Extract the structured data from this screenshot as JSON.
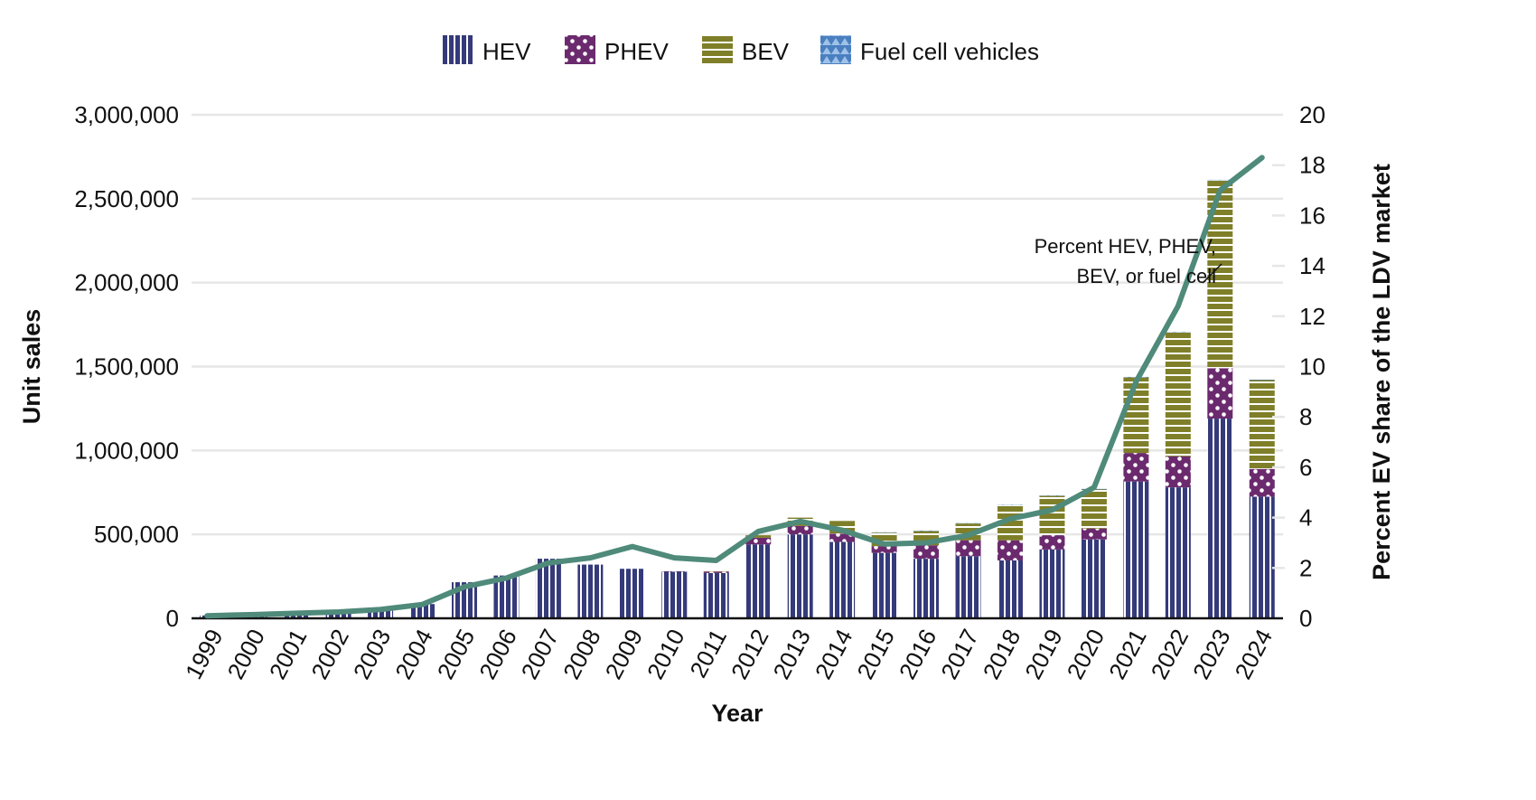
{
  "chart_data": {
    "type": "bar",
    "subtype": "stacked-bar-with-line",
    "categories": [
      "1999",
      "2000",
      "2001",
      "2002",
      "2003",
      "2004",
      "2005",
      "2006",
      "2007",
      "2008",
      "2009",
      "2010",
      "2011",
      "2012",
      "2013",
      "2014",
      "2015",
      "2016",
      "2017",
      "2018",
      "2019",
      "2020",
      "2021",
      "2022",
      "2023",
      "2024"
    ],
    "series": [
      {
        "name": "HEV",
        "color": "#353a7a",
        "pattern": "vertical-stripes",
        "values": [
          17000,
          9500,
          20000,
          36000,
          48000,
          85000,
          215000,
          255000,
          355000,
          320000,
          295000,
          280000,
          270000,
          440000,
          500000,
          455000,
          390000,
          355000,
          370000,
          345000,
          410000,
          470000,
          815000,
          780000,
          1190000,
          725000
        ]
      },
      {
        "name": "PHEV",
        "color": "#6b2a6e",
        "pattern": "dots",
        "values": [
          0,
          0,
          0,
          0,
          0,
          0,
          0,
          0,
          0,
          0,
          0,
          300,
          8000,
          40000,
          50000,
          50000,
          40000,
          80000,
          95000,
          120000,
          85000,
          65000,
          170000,
          185000,
          300000,
          165000
        ]
      },
      {
        "name": "BEV",
        "color": "#7f7f2a",
        "pattern": "horizontal-stripes",
        "values": [
          0,
          0,
          0,
          0,
          0,
          0,
          0,
          0,
          0,
          0,
          0,
          8000,
          9000,
          15000,
          50000,
          75000,
          80000,
          85000,
          100000,
          210000,
          235000,
          235000,
          450000,
          740000,
          1120000,
          530000
        ]
      },
      {
        "name": "Fuel cell vehicles",
        "color": "#4a7fc0",
        "pattern": "triangles",
        "values": [
          0,
          0,
          0,
          0,
          0,
          0,
          0,
          0,
          0,
          0,
          0,
          0,
          0,
          0,
          0,
          0,
          3000,
          2000,
          2500,
          2400,
          2100,
          1000,
          3300,
          2700,
          3000,
          2000
        ]
      }
    ],
    "line_series": {
      "name": "Percent HEV, PHEV, BEV, or fuel cell",
      "axis": "right",
      "color": "#4f8a7a",
      "values": [
        0.1,
        0.15,
        0.2,
        0.25,
        0.35,
        0.55,
        1.25,
        1.6,
        2.2,
        2.4,
        2.85,
        2.4,
        2.3,
        3.45,
        3.85,
        3.5,
        2.95,
        3.0,
        3.3,
        3.95,
        4.3,
        5.2,
        9.4,
        12.4,
        17.0,
        18.3
      ]
    },
    "xlabel": "Year",
    "ylabel": "Unit sales",
    "y2label": "Percent EV share of the LDV market",
    "ylim": [
      0,
      3000000
    ],
    "y2lim": [
      0,
      20
    ],
    "yticks": [
      0,
      500000,
      1000000,
      1500000,
      2000000,
      2500000,
      3000000
    ],
    "yticklabels": [
      "0",
      "500,000",
      "1,000,000",
      "1,500,000",
      "2,000,000",
      "2,500,000",
      "3,000,000"
    ],
    "y2ticks": [
      0,
      2,
      4,
      6,
      8,
      10,
      12,
      14,
      16,
      18,
      20
    ],
    "y2ticklabels": [
      "0",
      "2",
      "4",
      "6",
      "8",
      "10",
      "12",
      "14",
      "16",
      "18",
      "20"
    ],
    "grid": true,
    "legend_position": "top-center",
    "annotation": {
      "lines": [
        "Percent HEV, PHEV,",
        "BEV, or fuel cell"
      ],
      "anchor_category": "2023"
    }
  }
}
